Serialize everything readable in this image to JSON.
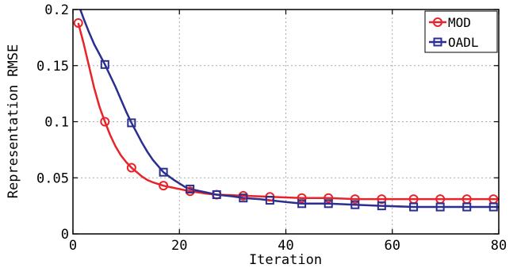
{
  "chart_data": {
    "type": "line",
    "xlabel": "Iteration",
    "ylabel": "Representation RMSE",
    "xlim": [
      0,
      80
    ],
    "ylim": [
      0,
      0.2
    ],
    "xticks": [
      0,
      20,
      40,
      60,
      80
    ],
    "yticks": [
      0,
      0.05,
      0.1,
      0.15,
      0.2
    ],
    "xtick_labels": [
      "0",
      "20",
      "40",
      "60",
      "80"
    ],
    "ytick_labels": [
      "0",
      "0.05",
      "0.1",
      "0.15",
      "0.2"
    ],
    "grid": true,
    "legend_position": "top-right",
    "series": [
      {
        "name": "MOD",
        "color": "#e8232a",
        "marker": "circle",
        "x": [
          1,
          6,
          11,
          17,
          22,
          27,
          32,
          37,
          43,
          48,
          53,
          58,
          64,
          69,
          74,
          79
        ],
        "y": [
          0.188,
          0.1,
          0.059,
          0.043,
          0.038,
          0.035,
          0.034,
          0.033,
          0.032,
          0.032,
          0.031,
          0.031,
          0.031,
          0.031,
          0.031,
          0.031
        ],
        "curve_x": [
          1,
          2,
          3,
          4,
          5,
          6,
          7,
          8,
          9,
          10,
          11,
          12,
          13,
          14,
          15,
          17,
          19,
          22,
          25,
          27,
          30,
          32,
          35,
          37,
          40,
          43,
          48,
          53,
          58,
          64,
          69,
          74,
          79,
          80
        ],
        "curve_y": [
          0.188,
          0.17,
          0.15,
          0.13,
          0.113,
          0.1,
          0.088,
          0.078,
          0.07,
          0.064,
          0.059,
          0.055,
          0.051,
          0.048,
          0.046,
          0.043,
          0.041,
          0.038,
          0.036,
          0.035,
          0.0345,
          0.034,
          0.0335,
          0.033,
          0.0325,
          0.032,
          0.032,
          0.031,
          0.031,
          0.031,
          0.031,
          0.031,
          0.031,
          0.031
        ]
      },
      {
        "name": "OADL",
        "color": "#2b2e8f",
        "marker": "square",
        "x": [
          6,
          11,
          17,
          22,
          27,
          32,
          37,
          43,
          48,
          53,
          58,
          64,
          69,
          74,
          79
        ],
        "y": [
          0.151,
          0.099,
          0.055,
          0.04,
          0.035,
          0.032,
          0.03,
          0.027,
          0.027,
          0.026,
          0.025,
          0.024,
          0.024,
          0.024,
          0.024
        ],
        "curve_x": [
          1,
          2,
          3,
          4,
          5,
          6,
          7,
          8,
          9,
          10,
          11,
          12,
          13,
          14,
          15,
          17,
          19,
          21,
          22,
          25,
          27,
          30,
          32,
          35,
          37,
          40,
          43,
          48,
          53,
          58,
          64,
          69,
          74,
          79,
          80
        ],
        "curve_y": [
          0.205,
          0.192,
          0.18,
          0.169,
          0.16,
          0.151,
          0.141,
          0.131,
          0.12,
          0.109,
          0.099,
          0.09,
          0.081,
          0.073,
          0.066,
          0.055,
          0.048,
          0.042,
          0.04,
          0.037,
          0.035,
          0.0335,
          0.032,
          0.031,
          0.03,
          0.0285,
          0.027,
          0.027,
          0.026,
          0.025,
          0.024,
          0.024,
          0.024,
          0.024,
          0.024
        ]
      }
    ]
  }
}
